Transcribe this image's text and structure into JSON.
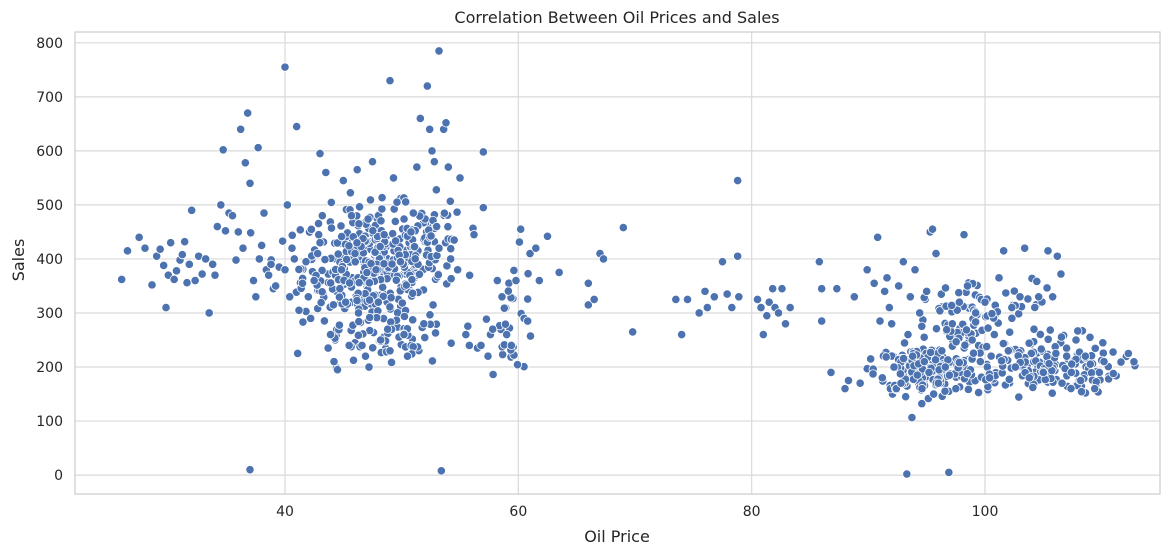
{
  "chart_data": {
    "type": "scatter",
    "title": "Correlation Between Oil Prices and Sales",
    "xlabel": "Oil Price",
    "ylabel": "Sales",
    "xlim": [
      22,
      115
    ],
    "ylim": [
      -35,
      820
    ],
    "xticks": [
      40,
      60,
      80,
      100
    ],
    "yticks": [
      0,
      100,
      200,
      300,
      400,
      500,
      600,
      700,
      800
    ],
    "grid": true,
    "legend": "none",
    "colors": {
      "point": "#4c72b0",
      "grid": "#d9d9d9",
      "frame": "#cccccc"
    },
    "series": [
      {
        "points": [
          [
            26,
            362
          ],
          [
            26.5,
            415
          ],
          [
            27.5,
            440
          ],
          [
            28,
            420
          ],
          [
            28.6,
            352
          ],
          [
            29,
            405
          ],
          [
            29.3,
            418
          ],
          [
            29.6,
            388
          ],
          [
            29.8,
            310
          ],
          [
            30,
            370
          ],
          [
            30.2,
            430
          ],
          [
            30.5,
            362
          ],
          [
            30.7,
            378
          ],
          [
            31,
            398
          ],
          [
            31.2,
            408
          ],
          [
            31.4,
            432
          ],
          [
            31.6,
            356
          ],
          [
            31.8,
            390
          ],
          [
            32,
            490
          ],
          [
            32.3,
            360
          ],
          [
            32.6,
            405
          ],
          [
            32.9,
            372
          ],
          [
            33.2,
            400
          ],
          [
            33.5,
            300
          ],
          [
            33.8,
            390
          ],
          [
            34,
            370
          ],
          [
            34.2,
            460
          ],
          [
            34.5,
            500
          ],
          [
            34.7,
            602
          ],
          [
            34.9,
            452
          ],
          [
            35.2,
            485
          ],
          [
            35.5,
            480
          ],
          [
            35.8,
            398
          ],
          [
            36,
            450
          ],
          [
            36.2,
            640
          ],
          [
            36.4,
            420
          ],
          [
            36.6,
            578
          ],
          [
            36.8,
            670
          ],
          [
            37,
            540
          ],
          [
            37,
            10
          ],
          [
            37.3,
            360
          ],
          [
            37.5,
            330
          ],
          [
            37.7,
            606
          ],
          [
            37.8,
            400
          ],
          [
            38,
            425
          ],
          [
            38.2,
            485
          ],
          [
            38.4,
            380
          ],
          [
            38.6,
            370
          ],
          [
            38.8,
            390
          ],
          [
            39,
            345
          ],
          [
            39.2,
            350
          ],
          [
            39.5,
            385
          ],
          [
            39.8,
            433
          ],
          [
            40,
            755
          ],
          [
            40,
            380
          ],
          [
            40.2,
            500
          ],
          [
            40.4,
            330
          ],
          [
            40.6,
            420
          ],
          [
            40.8,
            400
          ],
          [
            41,
            645
          ],
          [
            41.2,
            305
          ],
          [
            41.5,
            355
          ],
          [
            41.8,
            395
          ],
          [
            42,
            330
          ],
          [
            42.2,
            290
          ],
          [
            42.5,
            360
          ],
          [
            42.8,
            410
          ],
          [
            43,
            430
          ],
          [
            43,
            595
          ],
          [
            43.2,
            480
          ],
          [
            43.5,
            560
          ],
          [
            43.7,
            235
          ],
          [
            43.9,
            260
          ],
          [
            44.2,
            210
          ],
          [
            44.5,
            195
          ],
          [
            44.7,
            345
          ],
          [
            45,
            545
          ],
          [
            45.2,
            320
          ],
          [
            45.5,
            240
          ],
          [
            45.7,
            480
          ],
          [
            46,
            410
          ],
          [
            46.3,
            300
          ],
          [
            46.6,
            240
          ],
          [
            46.9,
            220
          ],
          [
            47.2,
            200
          ],
          [
            47.5,
            580
          ],
          [
            47.8,
            380
          ],
          [
            48,
            320
          ],
          [
            48.2,
            250
          ],
          [
            48.5,
            445
          ],
          [
            48.8,
            270
          ],
          [
            49,
            730
          ],
          [
            49,
            230
          ],
          [
            49.3,
            550
          ],
          [
            49.6,
            505
          ],
          [
            49.9,
            395
          ],
          [
            50.2,
            260
          ],
          [
            50.5,
            220
          ],
          [
            50.8,
            450
          ],
          [
            51,
            485
          ],
          [
            51.3,
            570
          ],
          [
            51.6,
            660
          ],
          [
            51.9,
            280
          ],
          [
            52.2,
            720
          ],
          [
            52.4,
            640
          ],
          [
            52.6,
            600
          ],
          [
            52.8,
            580
          ],
          [
            53,
            460
          ],
          [
            53.2,
            420
          ],
          [
            53.2,
            785
          ],
          [
            53.4,
            8
          ],
          [
            53.6,
            640
          ],
          [
            53.8,
            652
          ],
          [
            54,
            570
          ],
          [
            54.2,
            400
          ],
          [
            54.5,
            435
          ],
          [
            54.8,
            380
          ],
          [
            55,
            550
          ],
          [
            55.5,
            260
          ],
          [
            55.8,
            240
          ],
          [
            56.2,
            445
          ],
          [
            56.5,
            235
          ],
          [
            56.8,
            240
          ],
          [
            57,
            598
          ],
          [
            57,
            495
          ],
          [
            57.4,
            220
          ],
          [
            57.8,
            270
          ],
          [
            58.2,
            360
          ],
          [
            58.6,
            330
          ],
          [
            59,
            260
          ],
          [
            59.4,
            240
          ],
          [
            59.8,
            360
          ],
          [
            60.2,
            455
          ],
          [
            60.5,
            290
          ],
          [
            60.8,
            285
          ],
          [
            61,
            410
          ],
          [
            61.5,
            420
          ],
          [
            61.8,
            360
          ],
          [
            62.5,
            442
          ],
          [
            63.5,
            375
          ],
          [
            66,
            315
          ],
          [
            66,
            355
          ],
          [
            66.5,
            325
          ],
          [
            67,
            410
          ],
          [
            67.3,
            400
          ],
          [
            69,
            458
          ],
          [
            69.8,
            265
          ],
          [
            73.5,
            325
          ],
          [
            74,
            260
          ],
          [
            74.5,
            325
          ],
          [
            75.5,
            300
          ],
          [
            76,
            340
          ],
          [
            76.2,
            310
          ],
          [
            76.8,
            330
          ],
          [
            77.5,
            395
          ],
          [
            77.9,
            335
          ],
          [
            78.3,
            310
          ],
          [
            78.8,
            545
          ],
          [
            78.8,
            405
          ],
          [
            78.9,
            330
          ],
          [
            80.5,
            325
          ],
          [
            80.8,
            310
          ],
          [
            81,
            260
          ],
          [
            81.3,
            295
          ],
          [
            81.5,
            320
          ],
          [
            81.8,
            345
          ],
          [
            82,
            310
          ],
          [
            82.3,
            300
          ],
          [
            82.6,
            345
          ],
          [
            82.9,
            280
          ],
          [
            83.3,
            310
          ],
          [
            85.8,
            395
          ],
          [
            86,
            345
          ],
          [
            86,
            285
          ],
          [
            86.8,
            190
          ],
          [
            87.3,
            345
          ],
          [
            88,
            160
          ],
          [
            88.3,
            175
          ],
          [
            88.8,
            330
          ],
          [
            89.3,
            170
          ],
          [
            89.9,
            380
          ],
          [
            90.2,
            215
          ],
          [
            90.5,
            355
          ],
          [
            90.8,
            440
          ],
          [
            91,
            285
          ],
          [
            91.2,
            180
          ],
          [
            91.4,
            340
          ],
          [
            91.6,
            365
          ],
          [
            91.8,
            310
          ],
          [
            92,
            280
          ],
          [
            92.2,
            200
          ],
          [
            92.4,
            160
          ],
          [
            92.6,
            350
          ],
          [
            92.8,
            170
          ],
          [
            93,
            395
          ],
          [
            93.2,
            145
          ],
          [
            93.3,
            2
          ],
          [
            93.4,
            260
          ],
          [
            93.6,
            330
          ],
          [
            93.8,
            220
          ],
          [
            94,
            380
          ],
          [
            94.2,
            185
          ],
          [
            94.4,
            300
          ],
          [
            94.6,
            160
          ],
          [
            94.8,
            210
          ],
          [
            95,
            340
          ],
          [
            95.2,
            190
          ],
          [
            95.3,
            450
          ],
          [
            95.5,
            455
          ],
          [
            95.6,
            150
          ],
          [
            95.8,
            410
          ],
          [
            96,
            170
          ],
          [
            96.3,
            230
          ],
          [
            96.6,
            200
          ],
          [
            96.9,
            5
          ],
          [
            97.2,
            280
          ],
          [
            97.5,
            160
          ],
          [
            97.8,
            320
          ],
          [
            98.2,
            445
          ],
          [
            98.5,
            350
          ],
          [
            98.9,
            250
          ],
          [
            99.2,
            300
          ],
          [
            99.6,
            210
          ],
          [
            100,
            320
          ],
          [
            100.4,
            180
          ],
          [
            100.8,
            260
          ],
          [
            101.2,
            365
          ],
          [
            101.6,
            415
          ],
          [
            102,
            230
          ],
          [
            102.3,
            310
          ],
          [
            102.6,
            200
          ],
          [
            103,
            330
          ],
          [
            103.4,
            420
          ],
          [
            103.8,
            180
          ],
          [
            104.2,
            270
          ],
          [
            104.6,
            330
          ],
          [
            105,
            190
          ],
          [
            105.4,
            415
          ],
          [
            105.8,
            330
          ],
          [
            106.2,
            405
          ],
          [
            106.6,
            170
          ],
          [
            107,
            220
          ],
          [
            107.4,
            190
          ],
          [
            107.8,
            250
          ],
          [
            108.2,
            175
          ],
          [
            108.6,
            220
          ],
          [
            109,
            255
          ],
          [
            109.4,
            160
          ],
          [
            109.8,
            190
          ],
          [
            110.2,
            210
          ],
          [
            110.6,
            178
          ],
          [
            111,
            188
          ]
        ],
        "clusters": [
          {
            "cx": 47.5,
            "cy": 385,
            "sx": 3.0,
            "sy": 55,
            "n": 380
          },
          {
            "cx": 48.5,
            "cy": 245,
            "sx": 2.8,
            "sy": 22,
            "n": 45
          },
          {
            "cx": 52.5,
            "cy": 430,
            "sx": 1.5,
            "sy": 40,
            "n": 45
          },
          {
            "cx": 59.5,
            "cy": 300,
            "sx": 1.0,
            "sy": 55,
            "n": 30
          },
          {
            "cx": 95.0,
            "cy": 195,
            "sx": 2.2,
            "sy": 22,
            "n": 170
          },
          {
            "cx": 104.5,
            "cy": 200,
            "sx": 3.5,
            "sy": 25,
            "n": 160
          },
          {
            "cx": 97.5,
            "cy": 270,
            "sx": 1.3,
            "sy": 40,
            "n": 50
          },
          {
            "cx": 101.5,
            "cy": 300,
            "sx": 3.0,
            "sy": 35,
            "n": 50
          }
        ]
      }
    ]
  }
}
